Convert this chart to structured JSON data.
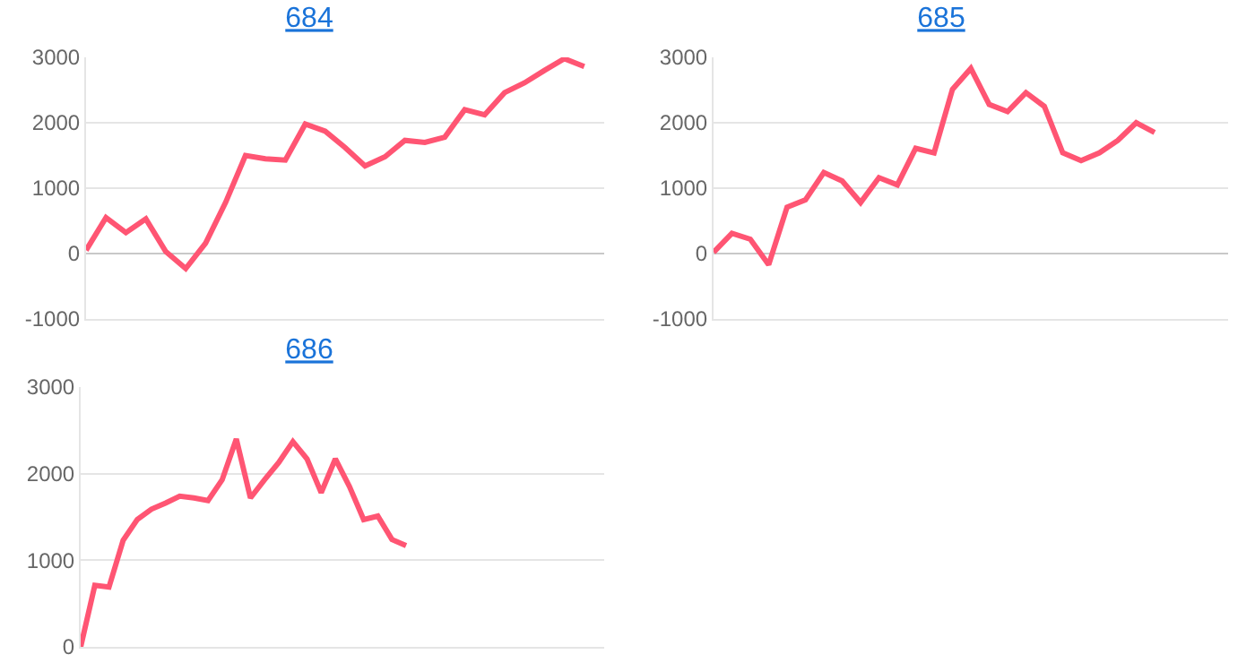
{
  "chart_data": [
    {
      "type": "line",
      "title": "684",
      "categories": [
        null,
        null,
        null,
        null,
        null,
        null,
        null,
        null,
        null,
        null,
        null,
        null,
        null,
        null,
        null,
        null,
        null,
        null,
        null,
        null,
        null,
        null,
        null,
        null,
        null,
        null,
        null
      ],
      "series": [
        {
          "color": "#ff5573",
          "values": [
            50,
            550,
            320,
            530,
            30,
            -230,
            160,
            780,
            1500,
            1450,
            1430,
            1980,
            1870,
            1620,
            1340,
            1480,
            1730,
            1700,
            1780,
            2200,
            2120,
            2460,
            2610,
            2800,
            2980,
            2860,
            null
          ]
        }
      ],
      "ylim": [
        -1000,
        3000
      ],
      "yticks": [
        -1000,
        0,
        1000,
        2000,
        3000
      ],
      "grid": true,
      "tick_labels": "y",
      "marker": "none",
      "line_style": "solid"
    },
    {
      "type": "line",
      "title": "685",
      "categories": [
        null,
        null,
        null,
        null,
        null,
        null,
        null,
        null,
        null,
        null,
        null,
        null,
        null,
        null,
        null,
        null,
        null,
        null,
        null,
        null,
        null,
        null,
        null,
        null,
        null,
        null,
        null,
        null,
        null
      ],
      "series": [
        {
          "color": "#ff5573",
          "values": [
            20,
            310,
            220,
            -170,
            710,
            820,
            1240,
            1110,
            780,
            1160,
            1050,
            1610,
            1540,
            2510,
            2830,
            2280,
            2170,
            2460,
            2250,
            1540,
            1420,
            1540,
            1730,
            2000,
            1850,
            null,
            null,
            null,
            null
          ]
        }
      ],
      "ylim": [
        -1000,
        3000
      ],
      "yticks": [
        -1000,
        0,
        1000,
        2000,
        3000
      ],
      "grid": true,
      "tick_labels": "y",
      "marker": "none",
      "line_style": "solid"
    },
    {
      "type": "line",
      "title": "686",
      "categories": [
        null,
        null,
        null,
        null,
        null,
        null,
        null,
        null,
        null,
        null,
        null,
        null,
        null,
        null,
        null,
        null,
        null,
        null,
        null,
        null,
        null,
        null,
        null,
        null,
        null,
        null,
        null,
        null,
        null,
        null,
        null,
        null,
        null,
        null,
        null,
        null,
        null,
        null
      ],
      "series": [
        {
          "color": "#ff5573",
          "values": [
            0,
            710,
            690,
            1230,
            1470,
            1590,
            1660,
            1740,
            1720,
            1690,
            1930,
            2400,
            1720,
            1930,
            2130,
            2370,
            2170,
            1780,
            2170,
            1850,
            1470,
            1510,
            1240,
            1170,
            null,
            null,
            null,
            null,
            null,
            null,
            null,
            null,
            null,
            null,
            null,
            null,
            null,
            null
          ]
        }
      ],
      "ylim": [
        0,
        3000
      ],
      "yticks": [
        0,
        1000,
        2000,
        3000
      ],
      "grid": true,
      "tick_labels": "y",
      "marker": "none",
      "line_style": "solid"
    }
  ]
}
